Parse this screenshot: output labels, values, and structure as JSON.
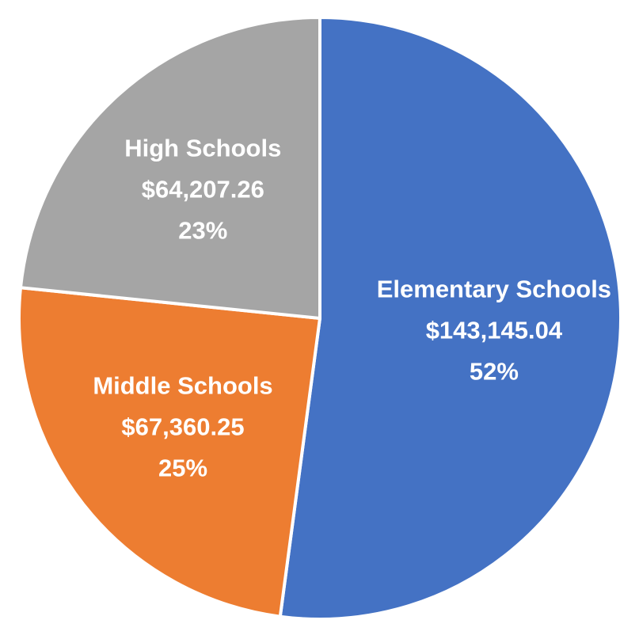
{
  "chart_data": {
    "type": "pie",
    "title": "",
    "legend": "none",
    "start": "top",
    "direction": "clockwise",
    "slices": [
      {
        "category": "Elementary Schools",
        "value": 143145.04,
        "value_label": "$143,145.04",
        "percent_label": "52%",
        "color": "#4472C4"
      },
      {
        "category": "Middle Schools",
        "value": 67360.25,
        "value_label": "$67,360.25",
        "percent_label": "25%",
        "color": "#ED7D31"
      },
      {
        "category": "High Schools",
        "value": 64207.26,
        "value_label": "$64,207.26",
        "percent_label": "23%",
        "color": "#A5A5A5"
      }
    ]
  }
}
